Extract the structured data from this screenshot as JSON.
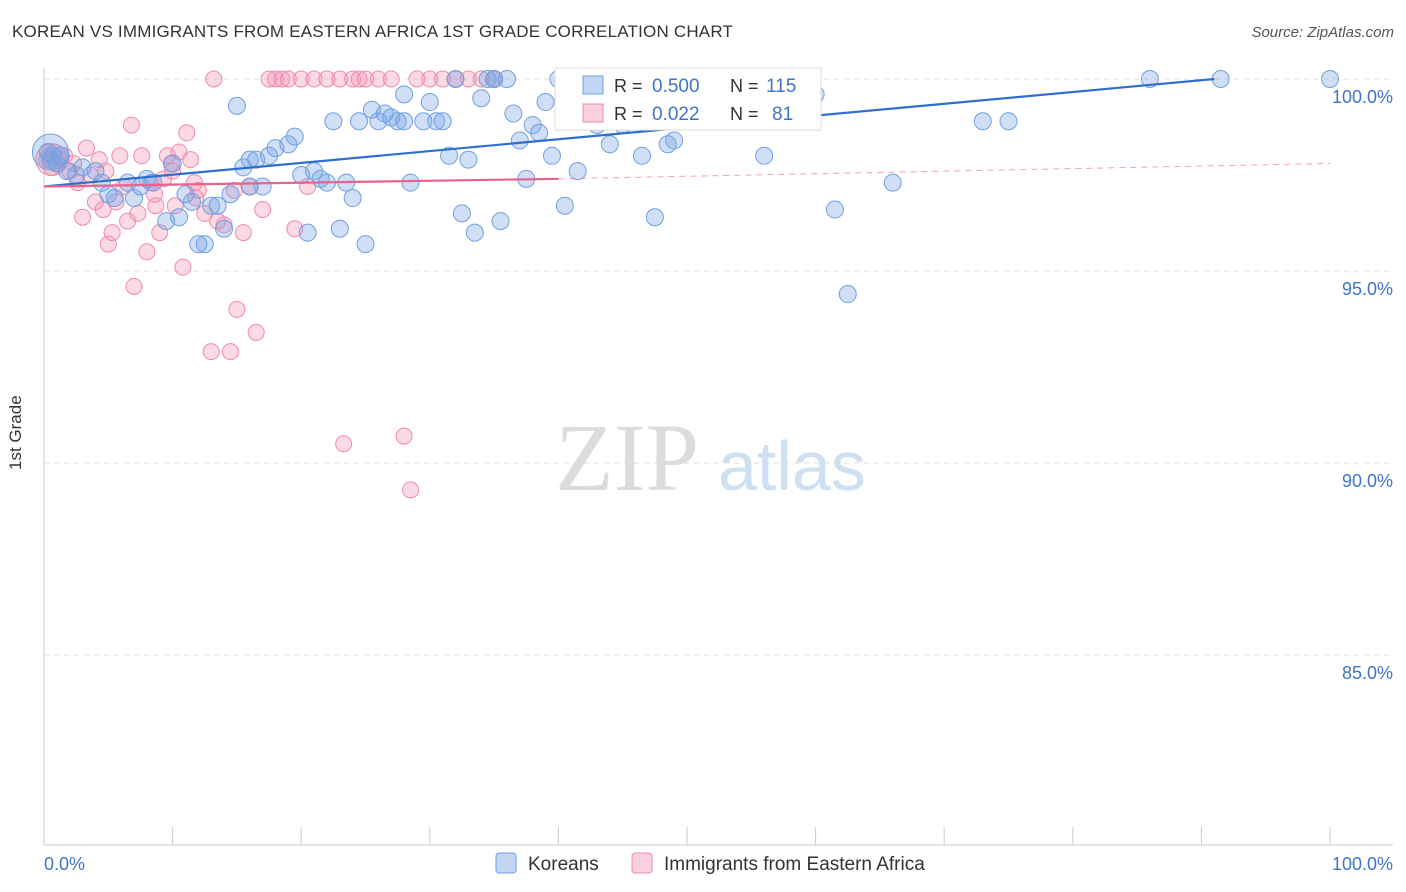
{
  "title": "KOREAN VS IMMIGRANTS FROM EASTERN AFRICA 1ST GRADE CORRELATION CHART",
  "source": "Source: ZipAtlas.com",
  "watermark": {
    "zip": "ZIP",
    "atlas": "atlas"
  },
  "colors": {
    "blue": "#6fa0e0",
    "blue_fill": "rgba(120,164,228,0.35)",
    "blue_line": "#2e6fce",
    "pink": "#f08aaa",
    "pink_fill": "rgba(244,150,180,0.35)",
    "pink_line": "#e8638e",
    "axis_text": "#3f74c8"
  },
  "legend": {
    "r_label": "R =",
    "n_label": "N =",
    "rows": [
      {
        "r": "0.500",
        "n": "115"
      },
      {
        "r": "0.022",
        "n": "81"
      }
    ]
  },
  "chart_data": {
    "type": "scatter",
    "title": "KOREAN VS IMMIGRANTS FROM EASTERN AFRICA 1ST GRADE CORRELATION CHART",
    "xlabel": "",
    "ylabel": "1st Grade",
    "xlim": [
      0,
      100
    ],
    "ylim": [
      80.0,
      100.6
    ],
    "x_tick_labels": [
      "0.0%",
      "100.0%"
    ],
    "y_ticks": [
      85.0,
      90.0,
      95.0,
      100.0
    ],
    "y_tick_labels": [
      "85.0%",
      "90.0%",
      "95.0%",
      "100.0%"
    ],
    "grid": true,
    "legend_position": "top-center",
    "series": [
      {
        "name": "Koreans",
        "r": 0.5,
        "n": 115,
        "trend": {
          "x0": 0,
          "y0": 97.2,
          "x1": 91,
          "y1": 100.0
        },
        "points": [
          [
            0.3,
            98.1
          ],
          [
            0.5,
            97.9
          ],
          [
            0.7,
            98.0
          ],
          [
            1.0,
            97.8
          ],
          [
            1.3,
            98.0
          ],
          [
            1.8,
            97.6
          ],
          [
            2.5,
            97.5
          ],
          [
            3.0,
            97.7
          ],
          [
            4.0,
            97.6
          ],
          [
            4.5,
            97.3
          ],
          [
            5.0,
            97.0
          ],
          [
            5.5,
            96.9
          ],
          [
            6.5,
            97.3
          ],
          [
            7.0,
            96.9
          ],
          [
            7.5,
            97.2
          ],
          [
            8.0,
            97.4
          ],
          [
            8.5,
            97.3
          ],
          [
            9.5,
            96.3
          ],
          [
            10.0,
            97.8
          ],
          [
            10.5,
            96.4
          ],
          [
            11.0,
            97.0
          ],
          [
            11.5,
            96.8
          ],
          [
            12.0,
            95.7
          ],
          [
            12.5,
            95.7
          ],
          [
            13.0,
            96.7
          ],
          [
            13.5,
            96.7
          ],
          [
            14.0,
            96.1
          ],
          [
            14.5,
            97.0
          ],
          [
            15.0,
            99.3
          ],
          [
            15.5,
            97.7
          ],
          [
            16.0,
            97.9
          ],
          [
            16.5,
            97.9
          ],
          [
            17.0,
            97.2
          ],
          [
            17.5,
            98.0
          ],
          [
            18.0,
            98.2
          ],
          [
            19.0,
            98.3
          ],
          [
            19.5,
            98.5
          ],
          [
            20.0,
            97.5
          ],
          [
            20.5,
            96.0
          ],
          [
            21.0,
            97.6
          ],
          [
            21.5,
            97.4
          ],
          [
            22.0,
            97.3
          ],
          [
            22.5,
            98.9
          ],
          [
            23.0,
            96.1
          ],
          [
            23.5,
            97.3
          ],
          [
            24.0,
            96.9
          ],
          [
            24.5,
            98.9
          ],
          [
            25.0,
            95.7
          ],
          [
            25.5,
            99.2
          ],
          [
            26.0,
            98.9
          ],
          [
            26.5,
            99.1
          ],
          [
            27.0,
            99.0
          ],
          [
            27.5,
            98.9
          ],
          [
            28.0,
            99.6
          ],
          [
            28.5,
            97.3
          ],
          [
            29.5,
            98.9
          ],
          [
            30.0,
            99.4
          ],
          [
            30.5,
            98.9
          ],
          [
            31.0,
            98.9
          ],
          [
            31.5,
            98.0
          ],
          [
            32.0,
            100.0
          ],
          [
            32.5,
            96.5
          ],
          [
            33.0,
            97.9
          ],
          [
            33.5,
            96.0
          ],
          [
            34.0,
            99.5
          ],
          [
            34.5,
            100.0
          ],
          [
            35.0,
            100.0
          ],
          [
            35.5,
            96.3
          ],
          [
            36.0,
            100.0
          ],
          [
            36.5,
            99.1
          ],
          [
            37.0,
            98.4
          ],
          [
            37.5,
            97.4
          ],
          [
            38.0,
            98.8
          ],
          [
            38.5,
            98.6
          ],
          [
            39.0,
            99.4
          ],
          [
            39.5,
            98.0
          ],
          [
            40.0,
            100.0
          ],
          [
            40.5,
            96.7
          ],
          [
            41.0,
            100.0
          ],
          [
            42.0,
            98.9
          ],
          [
            43.0,
            98.8
          ],
          [
            44.0,
            98.3
          ],
          [
            45.0,
            98.8
          ],
          [
            46.0,
            100.0
          ],
          [
            46.5,
            98.0
          ],
          [
            47.0,
            99.5
          ],
          [
            47.5,
            96.4
          ],
          [
            48.0,
            100.0
          ],
          [
            48.5,
            98.3
          ],
          [
            49.0,
            98.4
          ],
          [
            50.0,
            99.1
          ],
          [
            51.0,
            98.9
          ],
          [
            52.0,
            99.0
          ],
          [
            53.0,
            99.5
          ],
          [
            54.0,
            99.2
          ],
          [
            54.5,
            100.0
          ],
          [
            55.0,
            99.0
          ],
          [
            56.0,
            98.0
          ],
          [
            57.0,
            99.0
          ],
          [
            58.0,
            99.6
          ],
          [
            60.0,
            99.6
          ],
          [
            61.5,
            96.6
          ],
          [
            62.5,
            94.4
          ],
          [
            66.0,
            97.3
          ],
          [
            73.0,
            98.9
          ],
          [
            75.0,
            98.9
          ],
          [
            86.0,
            100.0
          ],
          [
            91.5,
            100.0
          ],
          [
            100.0,
            100.0
          ],
          [
            41.5,
            97.6
          ],
          [
            50.5,
            99.3
          ],
          [
            16.0,
            97.2
          ],
          [
            28.0,
            98.9
          ],
          [
            35.0,
            100.0
          ]
        ]
      },
      {
        "name": "Immigrants from Eastern Africa",
        "r": 0.022,
        "n": 81,
        "trend": {
          "x0": 0,
          "y0": 97.2,
          "x1": 40,
          "y1": 97.4
        },
        "trend_dashed": {
          "x0": 40,
          "y0": 97.4,
          "x1": 100,
          "y1": 97.8
        },
        "points": [
          [
            0.2,
            97.9
          ],
          [
            0.4,
            98.0
          ],
          [
            0.6,
            97.7
          ],
          [
            0.8,
            98.1
          ],
          [
            1.0,
            97.8
          ],
          [
            1.3,
            97.9
          ],
          [
            1.6,
            98.0
          ],
          [
            2.0,
            97.6
          ],
          [
            2.3,
            97.8
          ],
          [
            2.6,
            97.3
          ],
          [
            3.0,
            96.4
          ],
          [
            3.3,
            98.2
          ],
          [
            3.6,
            97.5
          ],
          [
            4.0,
            96.8
          ],
          [
            4.3,
            97.9
          ],
          [
            4.6,
            96.6
          ],
          [
            5.0,
            95.7
          ],
          [
            5.3,
            96.0
          ],
          [
            5.6,
            96.8
          ],
          [
            5.9,
            98.0
          ],
          [
            6.2,
            97.2
          ],
          [
            6.5,
            96.3
          ],
          [
            6.8,
            98.8
          ],
          [
            7.0,
            94.6
          ],
          [
            7.3,
            96.5
          ],
          [
            7.6,
            98.0
          ],
          [
            8.0,
            95.5
          ],
          [
            8.3,
            97.3
          ],
          [
            8.6,
            97.0
          ],
          [
            9.0,
            96.0
          ],
          [
            9.3,
            97.4
          ],
          [
            9.6,
            98.0
          ],
          [
            9.9,
            97.8
          ],
          [
            10.2,
            96.7
          ],
          [
            10.5,
            98.1
          ],
          [
            10.8,
            95.1
          ],
          [
            11.1,
            98.6
          ],
          [
            11.4,
            97.9
          ],
          [
            11.7,
            97.3
          ],
          [
            12.0,
            97.1
          ],
          [
            12.5,
            96.5
          ],
          [
            13.0,
            92.9
          ],
          [
            13.5,
            96.3
          ],
          [
            14.0,
            96.2
          ],
          [
            14.5,
            92.9
          ],
          [
            15.0,
            94.0
          ],
          [
            15.5,
            96.0
          ],
          [
            16.0,
            97.2
          ],
          [
            16.5,
            93.4
          ],
          [
            17.0,
            96.6
          ],
          [
            17.5,
            100.0
          ],
          [
            18.0,
            100.0
          ],
          [
            18.5,
            100.0
          ],
          [
            19.0,
            100.0
          ],
          [
            19.5,
            96.1
          ],
          [
            20.0,
            100.0
          ],
          [
            20.5,
            97.2
          ],
          [
            21.0,
            100.0
          ],
          [
            22.0,
            100.0
          ],
          [
            23.0,
            100.0
          ],
          [
            24.0,
            100.0
          ],
          [
            24.5,
            100.0
          ],
          [
            25.0,
            100.0
          ],
          [
            26.0,
            100.0
          ],
          [
            27.0,
            100.0
          ],
          [
            28.0,
            90.7
          ],
          [
            28.5,
            89.3
          ],
          [
            29.0,
            100.0
          ],
          [
            30.0,
            100.0
          ],
          [
            31.0,
            100.0
          ],
          [
            32.0,
            100.0
          ],
          [
            33.0,
            100.0
          ],
          [
            34.0,
            100.0
          ],
          [
            35.0,
            100.0
          ],
          [
            23.3,
            90.5
          ],
          [
            13.2,
            100.0
          ],
          [
            8.7,
            96.7
          ],
          [
            10.0,
            97.6
          ],
          [
            11.8,
            96.9
          ],
          [
            14.8,
            97.1
          ],
          [
            4.8,
            97.6
          ]
        ]
      }
    ]
  },
  "bottom_legend": [
    "Koreans",
    "Immigrants from Eastern Africa"
  ]
}
